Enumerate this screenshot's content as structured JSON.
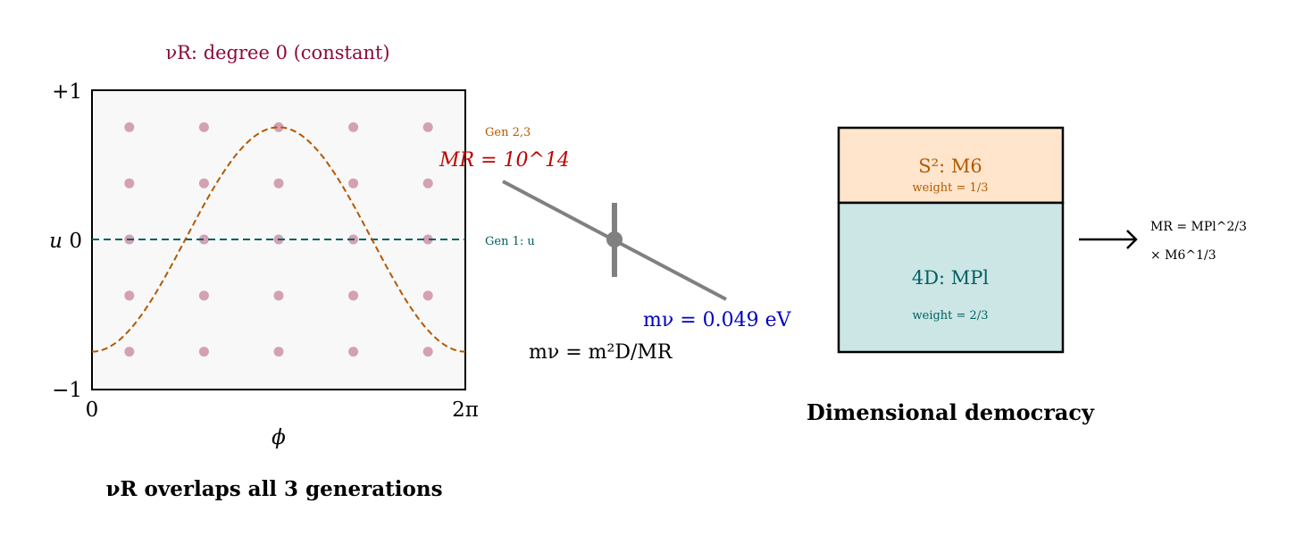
{
  "plot": {
    "title": "νR: degree 0 (constant)",
    "y_ticks": [
      "+1",
      "0",
      "−1"
    ],
    "y_label": "u",
    "x_ticks": [
      "0",
      "2π"
    ],
    "x_label": "ϕ",
    "caption": "νR overlaps all 3 generations",
    "gen1_label": "Gen 1: u",
    "gen23_label": "Gen 2,3",
    "curve": "u = −0.75 cos ϕ",
    "dot_u_values": [
      0.75,
      0.375,
      0,
      -0.375,
      -0.75
    ],
    "dot_phi_fractions": [
      0.1,
      0.3,
      0.5,
      0.7,
      0.9
    ],
    "colors": {
      "title": "#8b0a3a",
      "curve": "#b35900",
      "gen1": "#006060",
      "dots": "#d4a0b4"
    }
  },
  "seesaw": {
    "mr_label": "MR = 10^14",
    "mnu_label": "mν = 0.049 eV",
    "formula": "mν = m²D/MR",
    "colors": {
      "mr": "#c00000",
      "mnu": "#0000c0",
      "bar": "#808080"
    }
  },
  "democracy": {
    "top_label": "S²: M6",
    "top_weight": "weight = 1/3",
    "bottom_label": "4D: MPl",
    "bottom_weight": "weight = 2/3",
    "result_line1": "MR = MPl^2/3",
    "result_line2": "× M6^1/3",
    "caption": "Dimensional democracy",
    "colors": {
      "top_fill": "#ffe5cc",
      "bottom_fill": "#cce6e6",
      "top_text": "#b35900",
      "bottom_text": "#006060"
    }
  }
}
